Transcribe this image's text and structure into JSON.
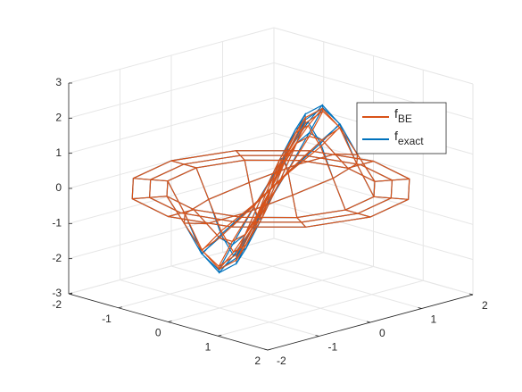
{
  "chart_data": {
    "type": "mesh3d",
    "r": [
      0,
      0.25,
      0.5,
      0.75,
      1,
      1.25,
      1.5,
      1.75,
      2
    ],
    "theta": [
      30,
      60,
      90,
      120,
      150,
      180,
      210,
      240,
      270,
      300,
      330,
      360
    ],
    "series": [
      {
        "name": "f",
        "name_subscript": "BE",
        "color": "#D95319",
        "values": [
          [
            0,
            0,
            0,
            0,
            0,
            0,
            0,
            0,
            0,
            0,
            0,
            0
          ],
          [
            1.1,
            1.0,
            0.6,
            0,
            -0.6,
            -1.0,
            -1.1,
            -1.0,
            -0.6,
            0,
            0.6,
            1.0
          ],
          [
            2.1,
            1.8,
            1.1,
            0,
            -1.1,
            -1.8,
            -2.1,
            -1.8,
            -1.1,
            0,
            1.1,
            1.8
          ],
          [
            2.4,
            2.1,
            1.2,
            0,
            -1.2,
            -2.1,
            -2.4,
            -2.1,
            -1.2,
            0,
            1.2,
            2.1
          ],
          [
            1.9,
            1.6,
            1.0,
            0,
            -1.0,
            -1.6,
            -1.9,
            -1.6,
            -1.0,
            0,
            1.0,
            1.6
          ],
          [
            0.9,
            0.8,
            0.5,
            0,
            -0.5,
            -0.8,
            -0.9,
            -0.8,
            -0.5,
            0,
            0.5,
            0.8
          ],
          [
            0,
            0,
            0,
            0,
            0,
            0,
            0,
            0,
            0,
            0,
            0,
            0
          ],
          [
            0,
            0,
            0,
            0,
            0,
            0,
            0,
            0,
            0,
            0,
            0,
            0
          ],
          [
            0,
            0,
            0,
            0,
            0,
            0,
            0,
            0,
            0,
            0,
            0,
            0
          ]
        ]
      },
      {
        "name": "f",
        "name_subscript": "exact",
        "color": "#0072BD",
        "values": [
          [
            0,
            0,
            0,
            0,
            0,
            0,
            0,
            0,
            0,
            0,
            0,
            0
          ],
          [
            1.2,
            1.0,
            0.6,
            0,
            -0.6,
            -1.0,
            -1.2,
            -1.0,
            -0.6,
            0,
            0.6,
            1.0
          ],
          [
            2.2,
            1.9,
            1.1,
            0,
            -1.1,
            -1.9,
            -2.2,
            -1.9,
            -1.1,
            0,
            1.1,
            1.9
          ],
          [
            2.5,
            2.2,
            1.3,
            0,
            -1.3,
            -2.2,
            -2.5,
            -2.2,
            -1.3,
            0,
            1.3,
            2.2
          ],
          [
            2.0,
            1.7,
            1.0,
            0,
            -1.0,
            -1.7,
            -2.0,
            -1.7,
            -1.0,
            0,
            1.0,
            1.7
          ],
          [
            0.9,
            0.8,
            0.5,
            0,
            -0.5,
            -0.8,
            -0.9,
            -0.8,
            -0.5,
            0,
            0.5,
            0.8
          ],
          [
            0,
            0,
            0,
            0,
            0,
            0,
            0,
            0,
            0,
            0,
            0,
            0
          ],
          [
            0,
            0,
            0,
            0,
            0,
            0,
            0,
            0,
            0,
            0,
            0,
            0
          ],
          [
            0,
            0,
            0,
            0,
            0,
            0,
            0,
            0,
            0,
            0,
            0,
            0
          ]
        ]
      }
    ],
    "xlim": [
      -2,
      2
    ],
    "ylim": [
      -2,
      2
    ],
    "zlim": [
      -3,
      3
    ],
    "xticks": [
      -2,
      -1,
      0,
      1,
      2
    ],
    "yticks": [
      -2,
      -1,
      0,
      1,
      2
    ],
    "zticks": [
      -3,
      -2,
      -1,
      0,
      1,
      2,
      3
    ],
    "grid": true,
    "legend": "northeast"
  }
}
